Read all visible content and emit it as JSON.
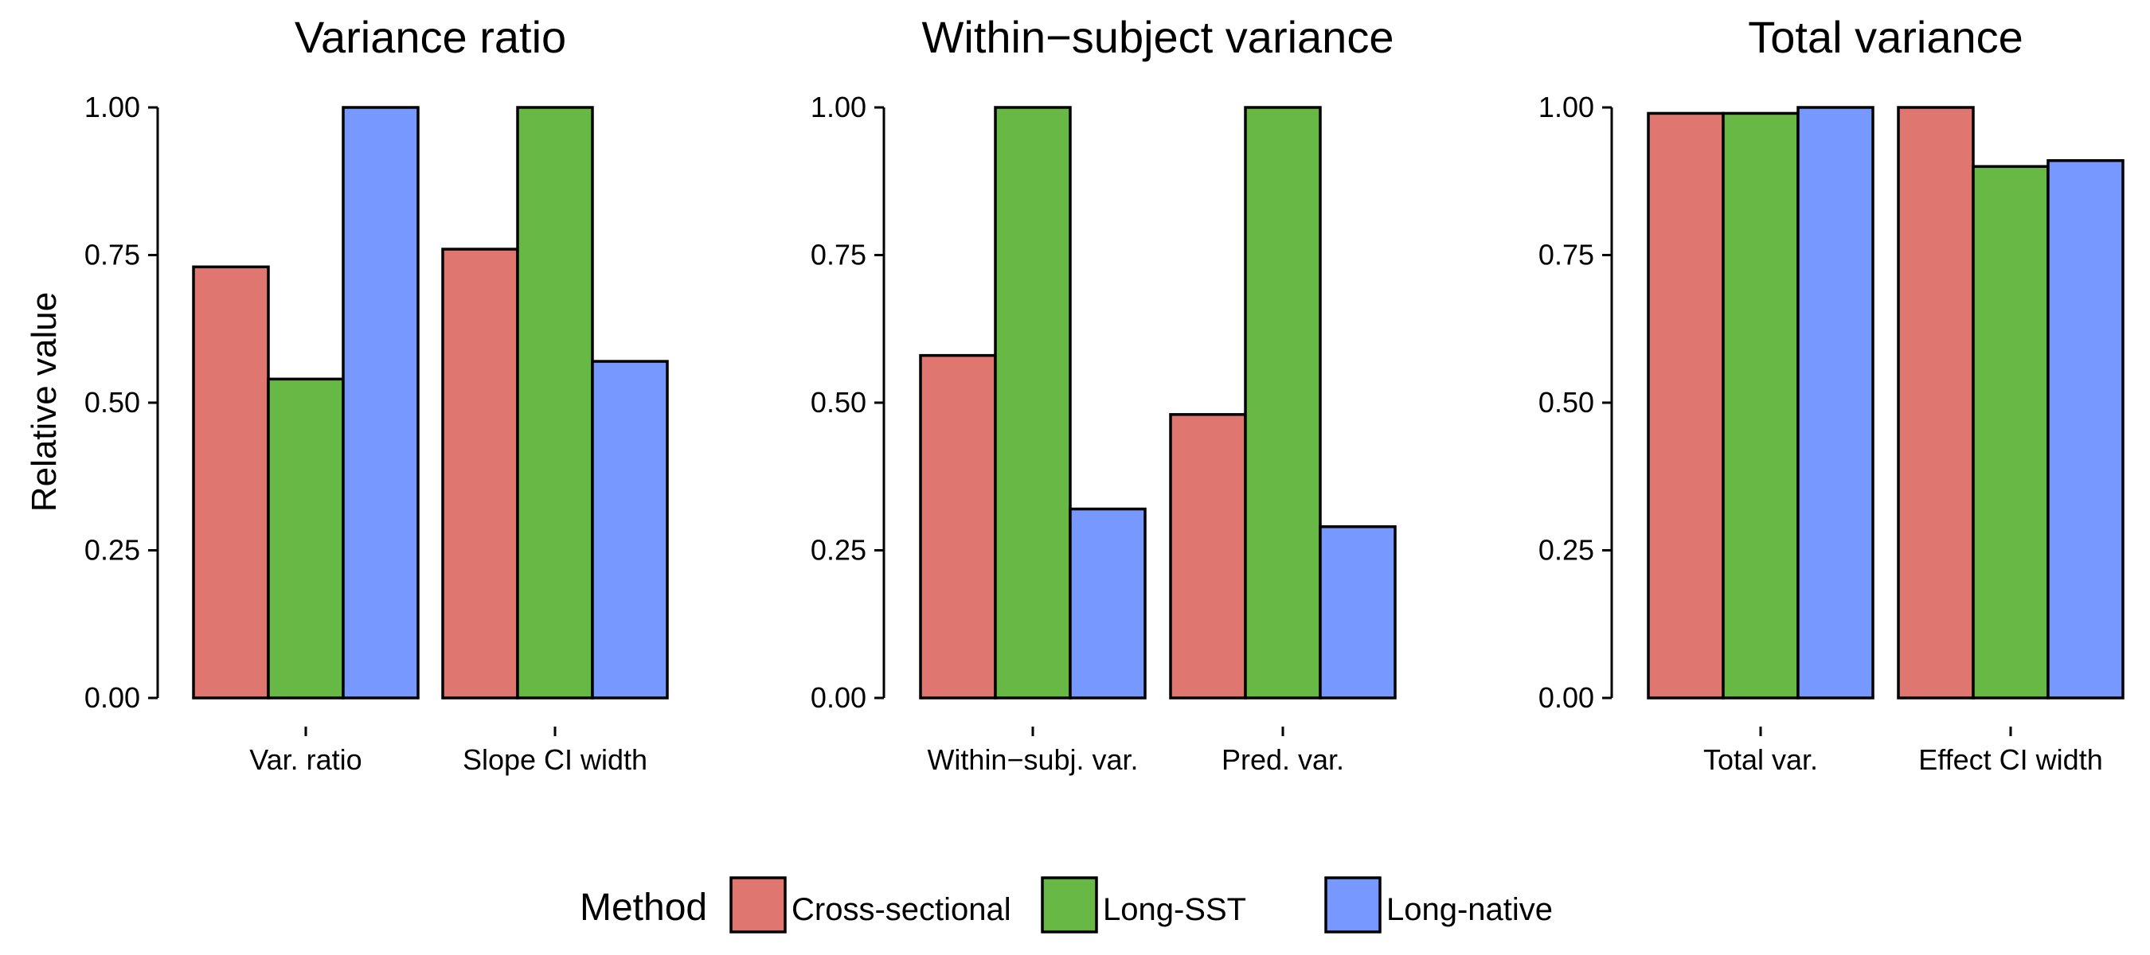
{
  "chart_data": {
    "type": "bar",
    "ylabel": "Relative value",
    "ylim": [
      0,
      1
    ],
    "y_ticks": [
      "0.00",
      "0.25",
      "0.50",
      "0.75",
      "1.00"
    ],
    "y_tick_values": [
      0,
      0.25,
      0.5,
      0.75,
      1.0
    ],
    "legend": {
      "title": "Method",
      "placement": "bottom",
      "entries": [
        "Cross-sectional",
        "Long-SST",
        "Long-native"
      ]
    },
    "colors": {
      "Cross-sectional": "#df7670",
      "Long-SST": "#68b845",
      "Long-native": "#7799ff"
    },
    "panels": [
      {
        "title": "Variance ratio",
        "categories": [
          "Var. ratio",
          "Slope CI width"
        ],
        "series": [
          {
            "name": "Cross-sectional",
            "values": [
              0.73,
              0.76
            ]
          },
          {
            "name": "Long-SST",
            "values": [
              0.54,
              1.0
            ]
          },
          {
            "name": "Long-native",
            "values": [
              1.0,
              0.57
            ]
          }
        ]
      },
      {
        "title": "Within−subject variance",
        "categories": [
          "Within−subj. var.",
          "Pred. var."
        ],
        "series": [
          {
            "name": "Cross-sectional",
            "values": [
              0.58,
              0.48
            ]
          },
          {
            "name": "Long-SST",
            "values": [
              1.0,
              1.0
            ]
          },
          {
            "name": "Long-native",
            "values": [
              0.32,
              0.29
            ]
          }
        ]
      },
      {
        "title": "Total variance",
        "categories": [
          "Total var.",
          "Effect CI width"
        ],
        "series": [
          {
            "name": "Cross-sectional",
            "values": [
              0.99,
              1.0
            ]
          },
          {
            "name": "Long-SST",
            "values": [
              0.99,
              0.9
            ]
          },
          {
            "name": "Long-native",
            "values": [
              1.0,
              0.91
            ]
          }
        ]
      }
    ]
  }
}
